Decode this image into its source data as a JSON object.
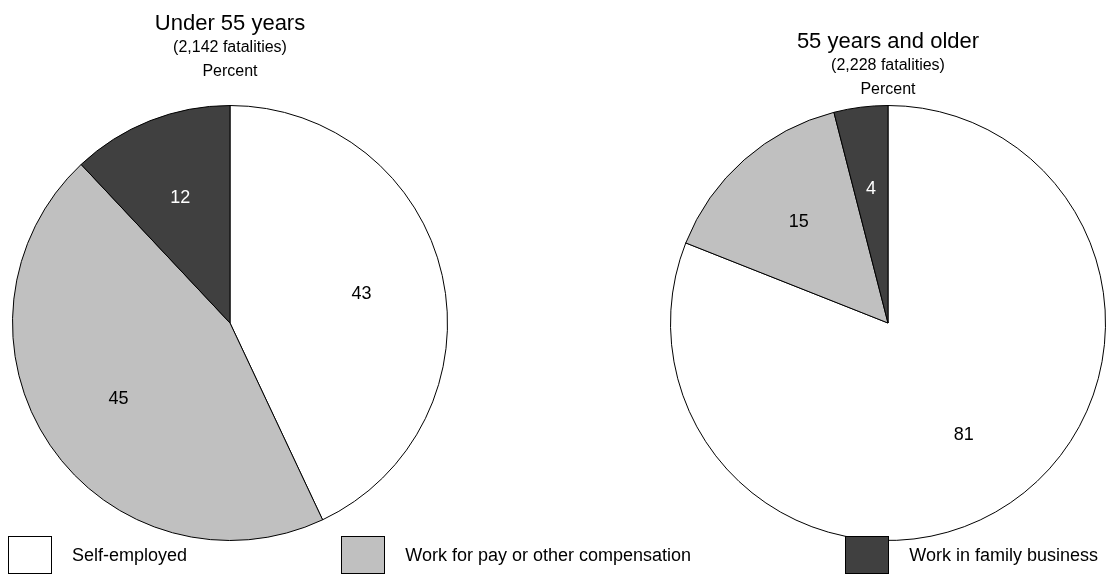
{
  "chart_data": [
    {
      "type": "pie",
      "title": "Under 55 years",
      "subtitle": "(2,142 fatalities)",
      "annotations": [
        "Percent"
      ],
      "categories": [
        "Self-employed",
        "Work for pay or other compensation",
        "Work in family business"
      ],
      "values": [
        43,
        45,
        12
      ],
      "colors": [
        "#ffffff",
        "#c0c0c0",
        "#404040"
      ],
      "data_labels": true,
      "legend": "bottom"
    },
    {
      "type": "pie",
      "title": "55 years and older",
      "subtitle": "(2,228 fatalities)",
      "annotations": [
        "Percent"
      ],
      "categories": [
        null,
        null,
        null
      ],
      "values": [
        81,
        15,
        4
      ],
      "colors": [
        "#ffffff",
        "#c0c0c0",
        "#404040"
      ],
      "data_labels": true
    }
  ]
}
